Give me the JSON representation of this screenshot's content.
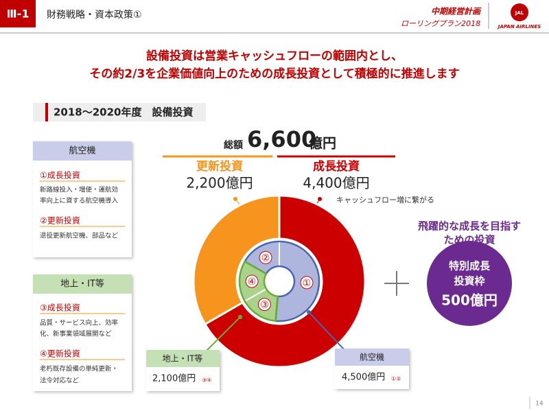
{
  "header": {
    "section": "Ⅲ-1",
    "title": "財務戦略・資本政策①",
    "plan_line1": "中期経営計画",
    "plan_line2": "ローリングプラン2018",
    "logo": "JAPAN AIRLINES",
    "logo_mark": "JAL"
  },
  "headline": [
    "設備投資は営業キャッシュフローの範囲内とし、",
    "その約2/3を企業価値向上のための成長投資として積極的に推進します"
  ],
  "section_title": "2018～2020年度　設備投資",
  "left_panels": [
    {
      "title": "航空機",
      "items": [
        {
          "heading": "①成長投資",
          "lines": [
            "新路線投入・増便・運航効",
            "率向上に資する航空機導入"
          ]
        },
        {
          "heading": "②更新投資",
          "lines": [
            "退役更新航空機、部品など"
          ]
        }
      ]
    },
    {
      "title": "地上・IT等",
      "items": [
        {
          "heading": "③成長投資",
          "lines": [
            "品質・サービス向上、効率",
            "化、新事業領域展開など"
          ]
        },
        {
          "heading": "④更新投資",
          "lines": [
            "老朽既存設備の単純更新・",
            "法令対応など"
          ]
        }
      ]
    }
  ],
  "chart_data": {
    "type": "donut",
    "total_prefix": "総額",
    "total": 6600,
    "total_label": "6,600",
    "unit": "億円",
    "outer": {
      "categories": [
        "成長投資",
        "更新投資"
      ],
      "values": [
        4400,
        2200
      ],
      "value_labels": [
        "4,400億円",
        "2,200億円"
      ],
      "colors": [
        "#cc0000",
        "#f7941d"
      ],
      "note": "キャッシュフロー増に繋がる"
    },
    "inner": {
      "categories": [
        "航空機",
        "地上・IT等"
      ],
      "values": [
        4500,
        2100
      ],
      "value_labels": [
        "4,500億円",
        "2,100億円"
      ],
      "refs": [
        "①②",
        "③④"
      ],
      "colors": [
        "#4a64b0",
        "#6aaa3a"
      ],
      "segments": {
        "labels": [
          "②",
          "①",
          "③",
          "④"
        ],
        "values": [
          1100,
          3400,
          1000,
          1100
        ],
        "colors": [
          "#aeb6de",
          "#aeb6de",
          "#a9d38a",
          "#a9d38a"
        ]
      }
    },
    "special": {
      "note": [
        "飛躍的な成長を目指す",
        "ための投資"
      ],
      "lines": [
        "特別成長",
        "投資枠"
      ],
      "value": 500,
      "value_label": "500億円",
      "color": "#6b2a8f"
    }
  },
  "page_number": "14"
}
